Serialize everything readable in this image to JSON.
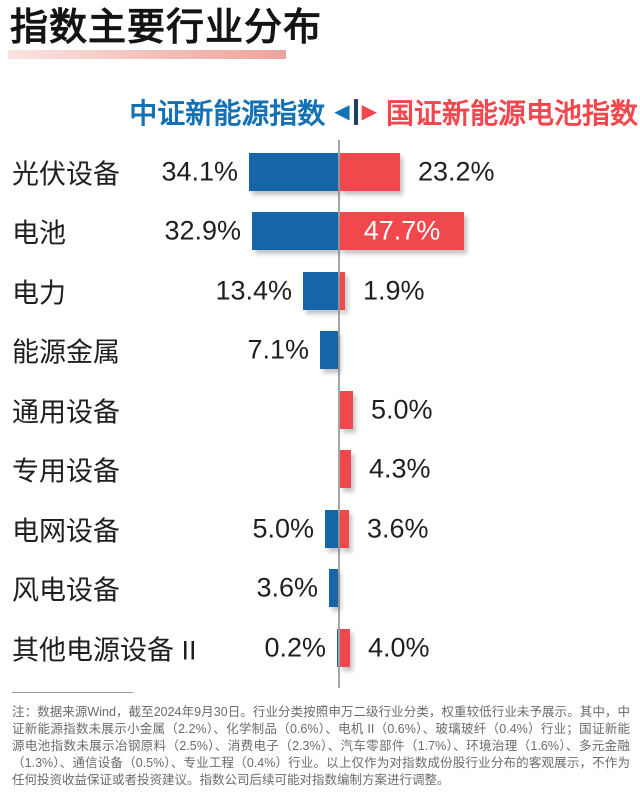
{
  "title": "指数主要行业分布",
  "legend": {
    "left_label": "中证新能源指数",
    "right_label": "国证新能源电池指数",
    "left_arrow": "◀",
    "right_arrow": "▶"
  },
  "colors": {
    "bar_blue": "#1565a8",
    "bar_red": "#f1484e",
    "legend_blue_text": "#1272b5",
    "legend_red_text": "#f2484d",
    "axis_gray": "#a6a6a6",
    "title_black": "#141414",
    "underline_pink": "#eca49d",
    "footnote_gray": "#6b6b6b",
    "inside_value_text": "#ffffff"
  },
  "chart_data": {
    "type": "bar",
    "subtype": "diverging-horizontal-tornado",
    "unit": "%",
    "value_labels_shown": true,
    "grid": false,
    "legend_position": "top",
    "categories": [
      "光伏设备",
      "电池",
      "电力",
      "能源金属",
      "通用设备",
      "专用设备",
      "电网设备",
      "风电设备",
      "其他电源设备 II"
    ],
    "series": [
      {
        "name": "中证新能源指数",
        "side": "left",
        "color": "#1565a8",
        "values": [
          34.1,
          32.9,
          13.4,
          7.1,
          null,
          null,
          5.0,
          3.6,
          0.2
        ]
      },
      {
        "name": "国证新能源电池指数",
        "side": "right",
        "color": "#f1484e",
        "values": [
          23.2,
          47.7,
          1.9,
          null,
          5.0,
          4.3,
          3.6,
          null,
          4.0
        ]
      }
    ],
    "value_label_format": "{value}%",
    "inside_label": {
      "series_index": 1,
      "category_index": 1,
      "text": "47.7%"
    },
    "xlim_left": 0,
    "xlim_right": 50
  },
  "footnote": "注：数据来源Wind，截至2024年9月30日。行业分类按照申万二级行业分类，权重较低行业未予展示。其中，中证新能源指数未展示小金属（2.2%）、化学制品（0.6%）、电机 II（0.6%）、玻璃玻纤（0.4%）行业；国证新能源电池指数未展示冶钢原料（2.5%）、消费电子（2.3%）、汽车零部件（1.7%）、环境治理（1.6%）、多元金融（1.3%）、通信设备（0.5%）、专业工程（0.4%）行业。以上仅作为对指数成份股行业分布的客观展示，不作为任何投资收益保证或者投资建议。指数公司后续可能对指数编制方案进行调整。"
}
